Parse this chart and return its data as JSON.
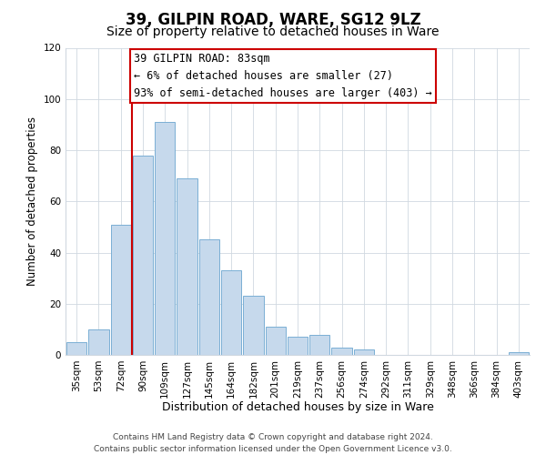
{
  "title": "39, GILPIN ROAD, WARE, SG12 9LZ",
  "subtitle": "Size of property relative to detached houses in Ware",
  "xlabel": "Distribution of detached houses by size in Ware",
  "ylabel": "Number of detached properties",
  "bar_labels": [
    "35sqm",
    "53sqm",
    "72sqm",
    "90sqm",
    "109sqm",
    "127sqm",
    "145sqm",
    "164sqm",
    "182sqm",
    "201sqm",
    "219sqm",
    "237sqm",
    "256sqm",
    "274sqm",
    "292sqm",
    "311sqm",
    "329sqm",
    "348sqm",
    "366sqm",
    "384sqm",
    "403sqm"
  ],
  "bar_values": [
    5,
    10,
    51,
    78,
    91,
    69,
    45,
    33,
    23,
    11,
    7,
    8,
    3,
    2,
    0,
    0,
    0,
    0,
    0,
    0,
    1
  ],
  "bar_color": "#c6d9ec",
  "bar_edge_color": "#7aafd4",
  "vline_x": 2.5,
  "vline_color": "#cc0000",
  "annotation_line1": "39 GILPIN ROAD: 83sqm",
  "annotation_line2": "← 6% of detached houses are smaller (27)",
  "annotation_line3": "93% of semi-detached houses are larger (403) →",
  "annotation_box_color": "#ffffff",
  "annotation_box_edge_color": "#cc0000",
  "ylim": [
    0,
    120
  ],
  "yticks": [
    0,
    20,
    40,
    60,
    80,
    100,
    120
  ],
  "grid_color": "#d0d8e0",
  "bg_color": "#ffffff",
  "plot_bg_color": "#ffffff",
  "footer_text": "Contains HM Land Registry data © Crown copyright and database right 2024.\nContains public sector information licensed under the Open Government Licence v3.0.",
  "title_fontsize": 12,
  "subtitle_fontsize": 10,
  "xlabel_fontsize": 9,
  "ylabel_fontsize": 8.5,
  "tick_fontsize": 7.5,
  "annotation_fontsize": 8.5,
  "footer_fontsize": 6.5
}
